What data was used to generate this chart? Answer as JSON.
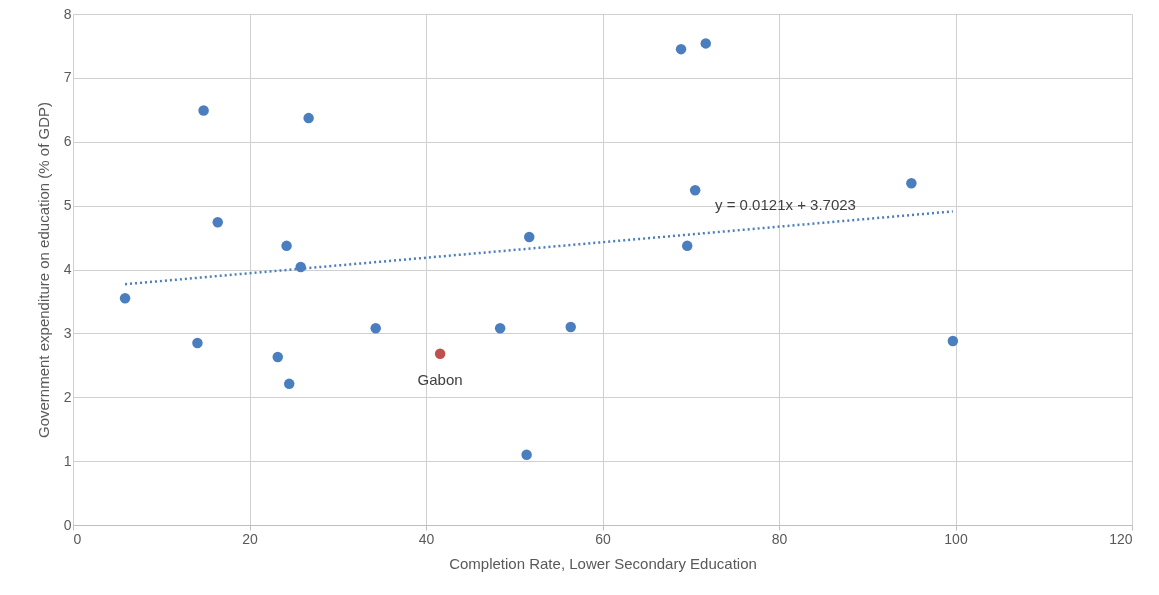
{
  "chart_data": {
    "type": "scatter",
    "xlabel": "Completion Rate, Lower Secondary Education",
    "ylabel": "Government expenditure on education (% of GDP)",
    "xlim": [
      0,
      120
    ],
    "xticks": [
      0,
      20,
      40,
      60,
      80,
      100,
      120
    ],
    "ylim": [
      0,
      8
    ],
    "yticks": [
      0,
      1,
      2,
      3,
      4,
      5,
      6,
      7,
      8
    ],
    "grid": true,
    "marker": "circle",
    "series": [
      {
        "color": "#4a7ebf",
        "x": [
          5.9,
          14.1,
          14.8,
          16.4,
          23.2,
          24.2,
          24.5,
          25.8,
          26.7,
          34.3,
          48.4,
          51.4,
          51.7,
          56.4,
          68.9,
          69.6,
          70.5,
          71.7,
          95.0,
          99.7
        ],
        "values": [
          3.55,
          2.85,
          6.49,
          4.74,
          2.63,
          4.37,
          2.21,
          4.04,
          6.37,
          3.08,
          3.08,
          1.1,
          4.51,
          3.1,
          7.45,
          4.37,
          5.24,
          7.54,
          5.35,
          2.88
        ]
      },
      {
        "name": "Gabon",
        "color": "#c0504d",
        "x": [
          41.6
        ],
        "values": [
          2.68
        ]
      },
      {
        "type": "line",
        "line_style": "dotted",
        "marker": "none",
        "color": "#4a7ebf",
        "x": [
          5.9,
          99.7
        ],
        "values": [
          3.77,
          4.91
        ]
      }
    ],
    "annotations": [
      "y = 0.0121x + 3.7023"
    ]
  }
}
